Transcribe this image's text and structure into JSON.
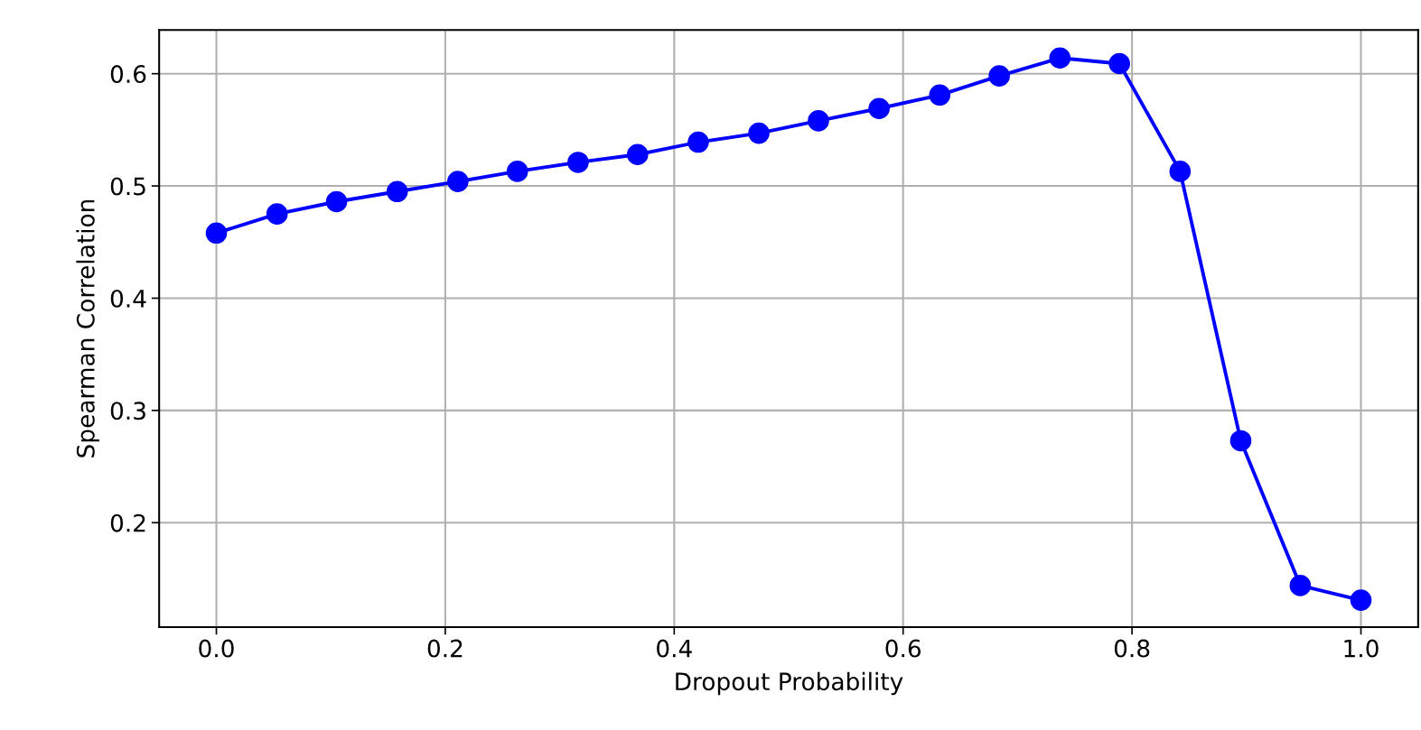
{
  "chart_data": {
    "type": "line",
    "xlabel": "Dropout Probability",
    "ylabel": "Spearman Correlation",
    "x": [
      0,
      0.053,
      0.105,
      0.158,
      0.211,
      0.263,
      0.316,
      0.368,
      0.421,
      0.474,
      0.526,
      0.579,
      0.632,
      0.684,
      0.737,
      0.789,
      0.842,
      0.895,
      0.947,
      1.0
    ],
    "series": [
      {
        "color": "#0000ff",
        "values": [
          0.458,
          0.475,
          0.486,
          0.495,
          0.504,
          0.513,
          0.521,
          0.528,
          0.539,
          0.547,
          0.558,
          0.569,
          0.581,
          0.598,
          0.614,
          0.609,
          0.513,
          0.273,
          0.144,
          0.131
        ]
      }
    ],
    "xlim": [
      -0.05,
      1.05
    ],
    "ylim": [
      0.107,
      0.639
    ],
    "xticks": [
      {
        "value": 0,
        "label": "0.0"
      },
      0.2,
      0.4,
      0.6,
      0.8,
      {
        "value": 1,
        "label": "1.0"
      }
    ],
    "yticks": [
      0.2,
      0.3,
      0.4,
      0.5,
      0.6
    ],
    "grid": true,
    "marker": "circle",
    "line_style": "solid"
  }
}
